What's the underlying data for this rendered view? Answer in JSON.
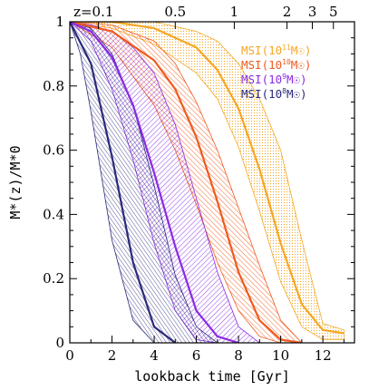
{
  "chart_data": {
    "type": "area",
    "xlabel": "lookback time [Gyr]",
    "ylabel": "M*(z)/M*0",
    "xlim": [
      0,
      13.5
    ],
    "ylim": [
      0,
      1
    ],
    "x_ticks": [
      0,
      2,
      4,
      6,
      8,
      10,
      12
    ],
    "y_ticks": [
      0,
      0.2,
      0.4,
      0.6,
      0.8,
      1
    ],
    "top_axis": {
      "ticks": [
        {
          "label": "z=0.1",
          "x": 1.35
        },
        {
          "label": "0.5",
          "x": 5.0
        },
        {
          "label": "1",
          "x": 7.8
        },
        {
          "label": "2",
          "x": 10.3
        },
        {
          "label": "3",
          "x": 11.5
        },
        {
          "label": "5",
          "x": 12.5
        }
      ]
    },
    "grid": false,
    "legend_position": "top-right",
    "series": [
      {
        "name": "MSI(10¹¹M☉)",
        "legend_parts": {
          "base": "MSI(10",
          "exp": "11",
          "unit": "M☉)"
        },
        "color": "#f5a623",
        "median": [
          [
            0,
            1
          ],
          [
            2,
            1
          ],
          [
            4,
            0.98
          ],
          [
            6,
            0.92
          ],
          [
            7,
            0.85
          ],
          [
            8,
            0.73
          ],
          [
            9,
            0.54
          ],
          [
            10,
            0.31
          ],
          [
            11,
            0.12
          ],
          [
            12,
            0.04
          ],
          [
            13,
            0.03
          ]
        ],
        "upper": [
          [
            0,
            1
          ],
          [
            2,
            1
          ],
          [
            4,
            1
          ],
          [
            6,
            0.97
          ],
          [
            7,
            0.94
          ],
          [
            8,
            0.87
          ],
          [
            9,
            0.76
          ],
          [
            10,
            0.6
          ],
          [
            11,
            0.32
          ],
          [
            12,
            0.06
          ],
          [
            13,
            0.04
          ]
        ],
        "lower": [
          [
            0,
            1
          ],
          [
            2,
            0.98
          ],
          [
            4,
            0.93
          ],
          [
            6,
            0.84
          ],
          [
            7,
            0.76
          ],
          [
            8,
            0.61
          ],
          [
            9,
            0.41
          ],
          [
            10,
            0.19
          ],
          [
            11,
            0.05
          ],
          [
            12,
            0.01
          ],
          [
            13,
            0.01
          ]
        ]
      },
      {
        "name": "MSI(10¹⁰M☉)",
        "legend_parts": {
          "base": "MSI(10",
          "exp": "10",
          "unit": "M☉)"
        },
        "color": "#f05a1e",
        "median": [
          [
            0,
            1
          ],
          [
            2,
            0.97
          ],
          [
            4,
            0.88
          ],
          [
            5,
            0.79
          ],
          [
            6,
            0.64
          ],
          [
            7,
            0.44
          ],
          [
            8,
            0.22
          ],
          [
            9,
            0.07
          ],
          [
            10,
            0.01
          ],
          [
            11,
            0
          ]
        ],
        "upper": [
          [
            0,
            1
          ],
          [
            2,
            0.99
          ],
          [
            4,
            0.94
          ],
          [
            5,
            0.87
          ],
          [
            6,
            0.75
          ],
          [
            7,
            0.6
          ],
          [
            8,
            0.42
          ],
          [
            9,
            0.24
          ],
          [
            10,
            0.07
          ],
          [
            11,
            0
          ]
        ],
        "lower": [
          [
            0,
            1
          ],
          [
            2,
            0.92
          ],
          [
            4,
            0.74
          ],
          [
            5,
            0.6
          ],
          [
            6,
            0.43
          ],
          [
            7,
            0.25
          ],
          [
            8,
            0.1
          ],
          [
            9,
            0.02
          ],
          [
            10,
            0
          ]
        ]
      },
      {
        "name": "MSI(10⁹M☉)",
        "legend_parts": {
          "base": "MSI(10",
          "exp": "9",
          "unit": "M☉)"
        },
        "color": "#8a2be2",
        "median": [
          [
            0,
            1
          ],
          [
            1,
            0.97
          ],
          [
            2,
            0.89
          ],
          [
            3,
            0.74
          ],
          [
            4,
            0.53
          ],
          [
            5,
            0.3
          ],
          [
            6,
            0.1
          ],
          [
            7,
            0.02
          ],
          [
            8,
            0
          ]
        ],
        "upper": [
          [
            0,
            1
          ],
          [
            1,
            0.99
          ],
          [
            2,
            0.97
          ],
          [
            3,
            0.92
          ],
          [
            4,
            0.84
          ],
          [
            5,
            0.68
          ],
          [
            6,
            0.45
          ],
          [
            7,
            0.22
          ],
          [
            8,
            0.05
          ],
          [
            9,
            0
          ]
        ],
        "lower": [
          [
            0,
            1
          ],
          [
            1,
            0.94
          ],
          [
            2,
            0.79
          ],
          [
            3,
            0.57
          ],
          [
            4,
            0.31
          ],
          [
            5,
            0.1
          ],
          [
            6,
            0.01
          ],
          [
            7,
            0
          ]
        ]
      },
      {
        "name": "MSI(10⁸M☉)",
        "legend_parts": {
          "base": "MSI(10",
          "exp": "8",
          "unit": "M☉)"
        },
        "color": "#2a2a7a",
        "median": [
          [
            0,
            1
          ],
          [
            1,
            0.87
          ],
          [
            2,
            0.58
          ],
          [
            3,
            0.25
          ],
          [
            4,
            0.05
          ],
          [
            5,
            0
          ]
        ],
        "upper": [
          [
            0,
            1
          ],
          [
            1,
            0.98
          ],
          [
            2,
            0.9
          ],
          [
            3,
            0.74
          ],
          [
            4,
            0.49
          ],
          [
            5,
            0.21
          ],
          [
            6,
            0.05
          ],
          [
            7,
            0
          ]
        ],
        "lower": [
          [
            0,
            1
          ],
          [
            0.5,
            0.9
          ],
          [
            1,
            0.72
          ],
          [
            2,
            0.32
          ],
          [
            3,
            0.07
          ],
          [
            4,
            0
          ]
        ]
      }
    ]
  }
}
